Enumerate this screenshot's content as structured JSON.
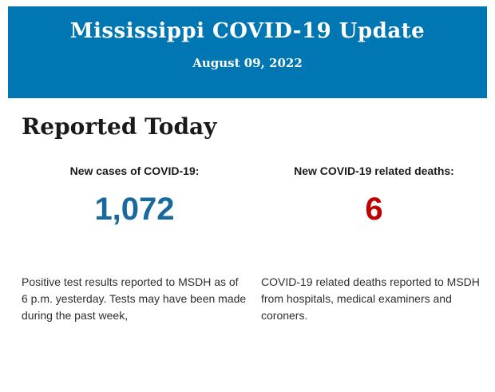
{
  "header": {
    "title": "Mississippi COVID-19 Update",
    "date": "August 09, 2022"
  },
  "main": {
    "section_title": "Reported Today"
  },
  "stats": [
    {
      "label": "New cases of COVID-19:",
      "value": "1,072",
      "note": "Positive test results reported to MSDH as of 6 p.m. yesterday. Tests may have been made during the past week,"
    },
    {
      "label": "New COVID-19 related deaths:",
      "value": "6",
      "note": "COVID-19 related deaths reported to MSDH from hospitals, medical examiners and coroners."
    }
  ],
  "colors": {
    "banner_blue": "#0076b2",
    "banner_text": "#ffffff",
    "cases_blue": "#17699e",
    "deaths_red": "#c00000"
  }
}
